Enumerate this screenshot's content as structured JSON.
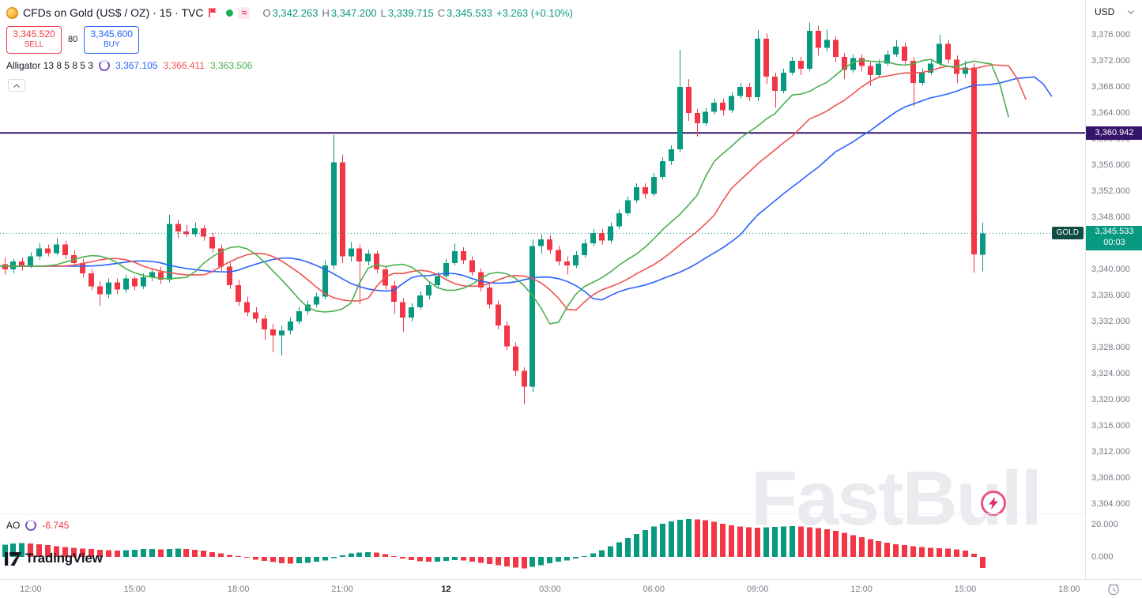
{
  "header": {
    "symbol_title": "CFDs on Gold (US$ / OZ) · 15 · TVC",
    "ohlc": {
      "o_label": "O",
      "o": "3,342.263",
      "h_label": "H",
      "h": "3,347.200",
      "l_label": "L",
      "l": "3,339.715",
      "c_label": "C",
      "c": "3,345.533",
      "change": "+3.263 (+0.10%)"
    },
    "sell_price": "3,345.520",
    "sell_label": "SELL",
    "spread": "80",
    "buy_price": "3,345.600",
    "buy_label": "BUY",
    "alligator_title": "Alligator 13 8 5 8 5 3",
    "alligator_jaw": "3,367.105",
    "alligator_teeth": "3,366.411",
    "alligator_lips": "3,363.506"
  },
  "icons": {
    "wave": "≈"
  },
  "ao_legend": {
    "title": "AO",
    "value": "-6.745"
  },
  "price_axis": {
    "currency": "USD",
    "level_label": "3,360.942",
    "current_symbol": "GOLD",
    "current_price": "3,345.533",
    "countdown": "00:03",
    "ao_ticks": [
      "20.000",
      "0.000"
    ]
  },
  "watermark_text": "FastBull",
  "logo_text": "TradingView",
  "chart_data": {
    "type": "candlestick",
    "title": "CFDs on Gold (US$ / OZ) · 15 · TVC",
    "interval_minutes": 15,
    "price_axis": {
      "min": 3304,
      "max": 3376,
      "tick_step": 4
    },
    "levels": {
      "horizontal_line": 3360.942,
      "current_price": 3345.533
    },
    "colors": {
      "up": "#089981",
      "down": "#f23645",
      "jaw": "#2962ff",
      "teeth": "#ef5350",
      "lips": "#4caf50",
      "level_line": "#35156b",
      "current_line": "#089981"
    },
    "alligator": {
      "jaw_period": 13,
      "jaw_shift": 8,
      "teeth_period": 8,
      "teeth_shift": 5,
      "lips_period": 5,
      "lips_shift": 3,
      "jaw_value": 3367.105,
      "teeth_value": 3366.411,
      "lips_value": 3363.506
    },
    "time_labels": [
      {
        "label": "12:00",
        "index": 3
      },
      {
        "label": "15:00",
        "index": 15
      },
      {
        "label": "18:00",
        "index": 27
      },
      {
        "label": "21:00",
        "index": 39
      },
      {
        "label": "12",
        "index": 51,
        "emphasis": true
      },
      {
        "label": "03:00",
        "index": 63
      },
      {
        "label": "06:00",
        "index": 75
      },
      {
        "label": "09:00",
        "index": 87
      },
      {
        "label": "12:00",
        "index": 99
      },
      {
        "label": "15:00",
        "index": 111
      },
      {
        "label": "18:00",
        "index": 123
      }
    ],
    "candles": [
      [
        3340.8,
        3341.8,
        3339.2,
        3340.0
      ],
      [
        3340.0,
        3341.6,
        3339.4,
        3341.2
      ],
      [
        3341.2,
        3341.8,
        3339.8,
        3340.5
      ],
      [
        3340.5,
        3342.6,
        3340.2,
        3342.0
      ],
      [
        3342.0,
        3344.0,
        3341.5,
        3343.2
      ],
      [
        3343.2,
        3343.8,
        3342.0,
        3342.5
      ],
      [
        3342.5,
        3344.8,
        3342.2,
        3343.8
      ],
      [
        3343.8,
        3344.4,
        3341.6,
        3342.2
      ],
      [
        3342.2,
        3342.9,
        3340.6,
        3341.0
      ],
      [
        3341.0,
        3341.6,
        3338.8,
        3339.4
      ],
      [
        3339.4,
        3340.0,
        3336.8,
        3337.4
      ],
      [
        3337.4,
        3338.2,
        3334.4,
        3336.2
      ],
      [
        3336.2,
        3338.6,
        3335.6,
        3338.0
      ],
      [
        3338.0,
        3338.6,
        3336.2,
        3336.9
      ],
      [
        3336.9,
        3339.2,
        3336.4,
        3338.6
      ],
      [
        3338.6,
        3339.0,
        3336.8,
        3337.4
      ],
      [
        3337.4,
        3339.4,
        3337.0,
        3338.8
      ],
      [
        3338.8,
        3340.2,
        3338.2,
        3339.6
      ],
      [
        3339.6,
        3340.4,
        3337.8,
        3338.4
      ],
      [
        3338.4,
        3348.4,
        3338.0,
        3347.0
      ],
      [
        3347.0,
        3347.6,
        3344.8,
        3345.8
      ],
      [
        3345.8,
        3346.8,
        3344.9,
        3345.4
      ],
      [
        3345.4,
        3347.2,
        3345.0,
        3346.3
      ],
      [
        3346.3,
        3346.8,
        3344.4,
        3345.0
      ],
      [
        3345.0,
        3345.6,
        3342.6,
        3343.2
      ],
      [
        3343.2,
        3343.8,
        3339.8,
        3340.4
      ],
      [
        3340.4,
        3341.0,
        3337.0,
        3337.6
      ],
      [
        3337.6,
        3338.4,
        3334.4,
        3335.0
      ],
      [
        3335.0,
        3335.8,
        3332.8,
        3333.4
      ],
      [
        3333.4,
        3334.2,
        3331.8,
        3332.4
      ],
      [
        3332.4,
        3333.0,
        3329.2,
        3330.8
      ],
      [
        3330.8,
        3331.6,
        3327.3,
        3329.9
      ],
      [
        3329.9,
        3331.4,
        3326.8,
        3330.6
      ],
      [
        3330.6,
        3332.6,
        3330.0,
        3332.0
      ],
      [
        3332.0,
        3334.2,
        3331.6,
        3333.6
      ],
      [
        3333.6,
        3335.2,
        3333.0,
        3334.6
      ],
      [
        3334.6,
        3336.4,
        3334.2,
        3335.8
      ],
      [
        3335.8,
        3341.4,
        3335.4,
        3340.6
      ],
      [
        3340.6,
        3360.6,
        3340.0,
        3356.4
      ],
      [
        3356.4,
        3357.6,
        3341.0,
        3342.0
      ],
      [
        3342.0,
        3344.2,
        3341.2,
        3343.2
      ],
      [
        3343.2,
        3343.8,
        3334.6,
        3341.2
      ],
      [
        3341.2,
        3343.0,
        3340.6,
        3342.4
      ],
      [
        3342.4,
        3342.9,
        3339.4,
        3340.0
      ],
      [
        3340.0,
        3340.6,
        3336.9,
        3337.5
      ],
      [
        3337.5,
        3338.2,
        3333.2,
        3335.0
      ],
      [
        3335.0,
        3335.6,
        3330.4,
        3332.6
      ],
      [
        3332.6,
        3334.8,
        3332.0,
        3334.2
      ],
      [
        3334.2,
        3336.6,
        3333.8,
        3336.0
      ],
      [
        3336.0,
        3338.2,
        3335.4,
        3337.6
      ],
      [
        3337.6,
        3339.6,
        3337.0,
        3339.0
      ],
      [
        3339.0,
        3341.6,
        3338.6,
        3341.0
      ],
      [
        3341.0,
        3344.0,
        3340.6,
        3342.8
      ],
      [
        3342.8,
        3343.4,
        3340.8,
        3341.4
      ],
      [
        3341.4,
        3342.0,
        3339.0,
        3339.6
      ],
      [
        3339.6,
        3340.2,
        3336.6,
        3337.2
      ],
      [
        3337.2,
        3337.8,
        3334.0,
        3334.6
      ],
      [
        3334.6,
        3335.2,
        3330.8,
        3331.4
      ],
      [
        3331.4,
        3332.0,
        3327.6,
        3328.2
      ],
      [
        3328.2,
        3328.8,
        3323.6,
        3324.4
      ],
      [
        3324.4,
        3325.0,
        3319.3,
        3322.0
      ],
      [
        3322.0,
        3344.6,
        3321.2,
        3343.6
      ],
      [
        3343.6,
        3345.4,
        3342.4,
        3344.6
      ],
      [
        3344.6,
        3345.2,
        3342.4,
        3343.0
      ],
      [
        3343.0,
        3343.6,
        3340.6,
        3341.2
      ],
      [
        3341.2,
        3342.0,
        3339.2,
        3340.6
      ],
      [
        3340.6,
        3342.8,
        3340.2,
        3342.2
      ],
      [
        3342.2,
        3344.6,
        3341.8,
        3344.0
      ],
      [
        3344.0,
        3346.2,
        3343.6,
        3345.6
      ],
      [
        3345.6,
        3346.2,
        3343.8,
        3344.4
      ],
      [
        3344.4,
        3347.2,
        3344.0,
        3346.6
      ],
      [
        3346.6,
        3349.2,
        3346.2,
        3348.6
      ],
      [
        3348.6,
        3351.2,
        3348.2,
        3350.6
      ],
      [
        3350.6,
        3353.2,
        3350.2,
        3352.6
      ],
      [
        3352.6,
        3353.2,
        3350.8,
        3351.6
      ],
      [
        3351.6,
        3354.8,
        3351.2,
        3354.2
      ],
      [
        3354.2,
        3357.2,
        3353.8,
        3356.6
      ],
      [
        3356.6,
        3359.0,
        3356.0,
        3358.4
      ],
      [
        3358.4,
        3373.7,
        3358.0,
        3368.0
      ],
      [
        3368.0,
        3369.2,
        3362.8,
        3364.0
      ],
      [
        3364.0,
        3364.6,
        3360.4,
        3362.4
      ],
      [
        3362.4,
        3364.8,
        3362.0,
        3364.2
      ],
      [
        3364.2,
        3366.2,
        3363.8,
        3365.6
      ],
      [
        3365.6,
        3366.2,
        3363.6,
        3364.4
      ],
      [
        3364.4,
        3367.2,
        3364.0,
        3366.6
      ],
      [
        3366.6,
        3368.6,
        3366.2,
        3368.0
      ],
      [
        3368.0,
        3368.6,
        3365.8,
        3366.4
      ],
      [
        3366.4,
        3376.7,
        3365.8,
        3375.4
      ],
      [
        3375.4,
        3376.2,
        3368.4,
        3369.6
      ],
      [
        3369.6,
        3370.2,
        3364.8,
        3367.4
      ],
      [
        3367.4,
        3370.8,
        3367.0,
        3370.2
      ],
      [
        3370.2,
        3372.6,
        3369.8,
        3372.0
      ],
      [
        3372.0,
        3372.6,
        3369.8,
        3370.8
      ],
      [
        3370.8,
        3377.9,
        3370.4,
        3376.6
      ],
      [
        3376.6,
        3377.4,
        3372.8,
        3374.0
      ],
      [
        3374.0,
        3376.8,
        3373.4,
        3375.2
      ],
      [
        3375.2,
        3375.8,
        3371.8,
        3372.6
      ],
      [
        3372.6,
        3373.2,
        3369.2,
        3370.6
      ],
      [
        3370.6,
        3373.0,
        3370.2,
        3372.4
      ],
      [
        3372.4,
        3373.0,
        3370.4,
        3371.2
      ],
      [
        3371.2,
        3371.8,
        3368.2,
        3369.8
      ],
      [
        3369.8,
        3372.2,
        3369.4,
        3371.6
      ],
      [
        3371.6,
        3373.6,
        3371.2,
        3373.0
      ],
      [
        3373.0,
        3375.2,
        3372.6,
        3374.2
      ],
      [
        3374.2,
        3374.8,
        3371.4,
        3372.0
      ],
      [
        3372.0,
        3372.6,
        3365.0,
        3368.6
      ],
      [
        3368.6,
        3370.8,
        3368.2,
        3370.2
      ],
      [
        3370.2,
        3372.2,
        3369.8,
        3371.6
      ],
      [
        3371.6,
        3376.0,
        3371.2,
        3374.6
      ],
      [
        3374.6,
        3375.2,
        3371.6,
        3372.2
      ],
      [
        3372.2,
        3372.8,
        3368.6,
        3370.0
      ],
      [
        3370.0,
        3372.0,
        3369.4,
        3371.0
      ],
      [
        3371.0,
        3371.6,
        3339.5,
        3342.3
      ],
      [
        3342.263,
        3347.2,
        3339.715,
        3345.533
      ]
    ],
    "ao": {
      "title": "AO",
      "current": -6.745,
      "values": [
        7.5,
        8.2,
        8.6,
        8.3,
        7.8,
        7.2,
        6.6,
        6.1,
        5.7,
        5.2,
        4.8,
        4.4,
        4.1,
        3.9,
        4.2,
        4.5,
        4.8,
        5.0,
        4.6,
        4.9,
        5.2,
        4.8,
        4.4,
        3.8,
        3.0,
        2.2,
        1.3,
        0.4,
        -0.6,
        -1.6,
        -2.5,
        -3.2,
        -3.8,
        -4.1,
        -4.0,
        -3.6,
        -3.0,
        -2.2,
        -0.8,
        0.9,
        2.2,
        2.8,
        3.0,
        2.6,
        1.6,
        0.4,
        -0.9,
        -2.0,
        -2.7,
        -3.0,
        -2.9,
        -2.5,
        -2.0,
        -2.3,
        -2.9,
        -3.6,
        -4.4,
        -5.2,
        -5.9,
        -6.5,
        -7.0,
        -6.2,
        -5.0,
        -3.9,
        -3.0,
        -2.2,
        -1.0,
        0.5,
        2.2,
        4.2,
        6.5,
        9.0,
        11.6,
        14.2,
        16.6,
        18.8,
        20.6,
        22.0,
        23.0,
        23.4,
        23.2,
        22.6,
        21.7,
        20.6,
        19.6,
        18.8,
        18.2,
        18.0,
        18.2,
        18.6,
        18.9,
        19.0,
        18.8,
        18.4,
        17.8,
        17.0,
        16.0,
        14.8,
        13.5,
        12.2,
        10.9,
        9.7,
        8.7,
        7.9,
        7.2,
        6.6,
        6.1,
        5.7,
        5.4,
        5.1,
        4.7,
        4.0,
        2.0,
        -6.745
      ]
    }
  }
}
